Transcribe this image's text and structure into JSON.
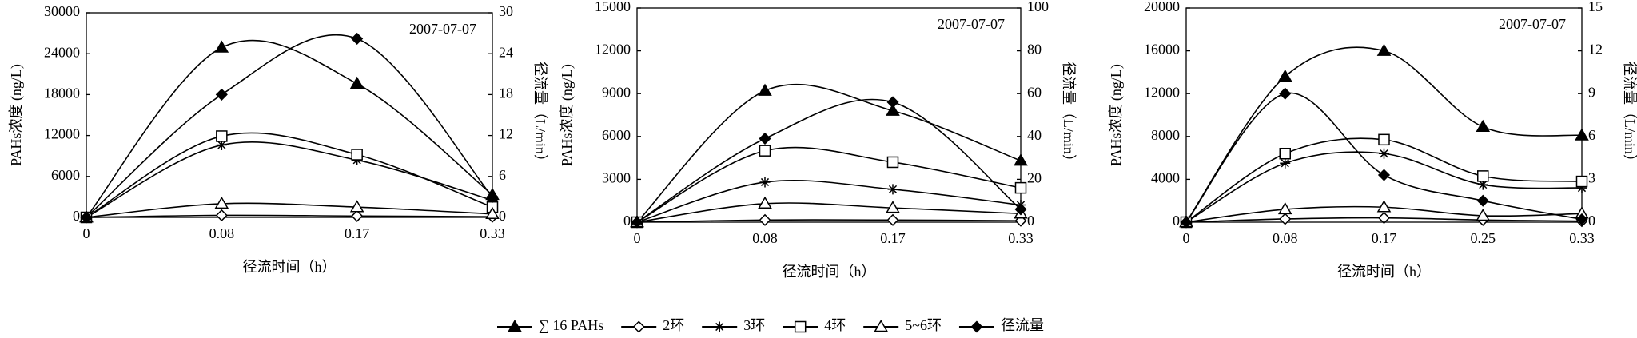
{
  "legend": [
    "∑ 16 PAHs",
    "2环",
    "3环",
    "4环",
    "5~6环",
    "径流量"
  ],
  "chart_data": [
    {
      "type": "line",
      "annotation": "2007-07-07",
      "x_label": "径流时间（h）",
      "y_label": "PAHs浓度 (ng/L)",
      "y2_label": "径流量（L/min）",
      "categories": [
        "0",
        "0.08",
        "0.17",
        "0.33"
      ],
      "ylim": [
        0,
        30000
      ],
      "yticks": [
        0,
        6000,
        12000,
        18000,
        24000,
        30000
      ],
      "y2lim": [
        0,
        30
      ],
      "y2ticks": [
        0,
        6,
        12,
        18,
        24,
        30
      ],
      "series": [
        {
          "color": "#000000",
          "values": [
            0,
            24900,
            19600,
            3300
          ]
        },
        {
          "color": "#000000",
          "values": [
            0,
            300,
            200,
            100
          ]
        },
        {
          "color": "#000000",
          "values": [
            0,
            10600,
            8400,
            2500
          ]
        },
        {
          "color": "#000000",
          "values": [
            0,
            11900,
            9200,
            1500
          ]
        },
        {
          "color": "#000000",
          "values": [
            0,
            2000,
            1500,
            500
          ]
        },
        {
          "color": "#000000",
          "axis": "y2",
          "values": [
            0,
            18,
            26.2,
            3
          ]
        }
      ]
    },
    {
      "type": "line",
      "annotation": "2007-07-07",
      "x_label": "径流时间（h）",
      "y_label": "PAHs浓度 (ng/L)",
      "y2_label": "径流量（L/min）",
      "categories": [
        "0",
        "0.08",
        "0.17",
        "0.33"
      ],
      "ylim": [
        0,
        15000
      ],
      "yticks": [
        0,
        3000,
        6000,
        9000,
        12000,
        15000
      ],
      "y2lim": [
        0,
        100
      ],
      "y2ticks": [
        0,
        20,
        40,
        60,
        80,
        100
      ],
      "series": [
        {
          "color": "#000000",
          "values": [
            0,
            9200,
            7800,
            4300
          ]
        },
        {
          "color": "#000000",
          "values": [
            0,
            150,
            150,
            100
          ]
        },
        {
          "color": "#000000",
          "values": [
            0,
            2800,
            2300,
            1200
          ]
        },
        {
          "color": "#000000",
          "values": [
            0,
            5000,
            4200,
            2400
          ]
        },
        {
          "color": "#000000",
          "values": [
            0,
            1300,
            1000,
            600
          ]
        },
        {
          "color": "#000000",
          "axis": "y2",
          "values": [
            0,
            39,
            56,
            6
          ]
        }
      ]
    },
    {
      "type": "line",
      "annotation": "2007-07-07",
      "x_label": "径流时间（h）",
      "y_label": "PAHs浓度 (ng/L)",
      "y2_label": "径流量（L/min）",
      "categories": [
        "0",
        "0.08",
        "0.17",
        "0.25",
        "0.33"
      ],
      "ylim": [
        0,
        20000
      ],
      "yticks": [
        0,
        4000,
        8000,
        12000,
        16000,
        20000
      ],
      "y2lim": [
        0,
        15
      ],
      "y2ticks": [
        0,
        3,
        6,
        9,
        12,
        15
      ],
      "series": [
        {
          "color": "#000000",
          "values": [
            0,
            13600,
            16000,
            8900,
            8100
          ]
        },
        {
          "color": "#000000",
          "values": [
            0,
            300,
            400,
            200,
            100
          ]
        },
        {
          "color": "#000000",
          "values": [
            0,
            5500,
            6400,
            3500,
            3200
          ]
        },
        {
          "color": "#000000",
          "values": [
            0,
            6400,
            7700,
            4300,
            3800
          ]
        },
        {
          "color": "#000000",
          "values": [
            0,
            1200,
            1400,
            600,
            800
          ]
        },
        {
          "color": "#000000",
          "axis": "y2",
          "values": [
            0,
            9,
            3.3,
            1.5,
            0.2
          ]
        }
      ]
    }
  ]
}
